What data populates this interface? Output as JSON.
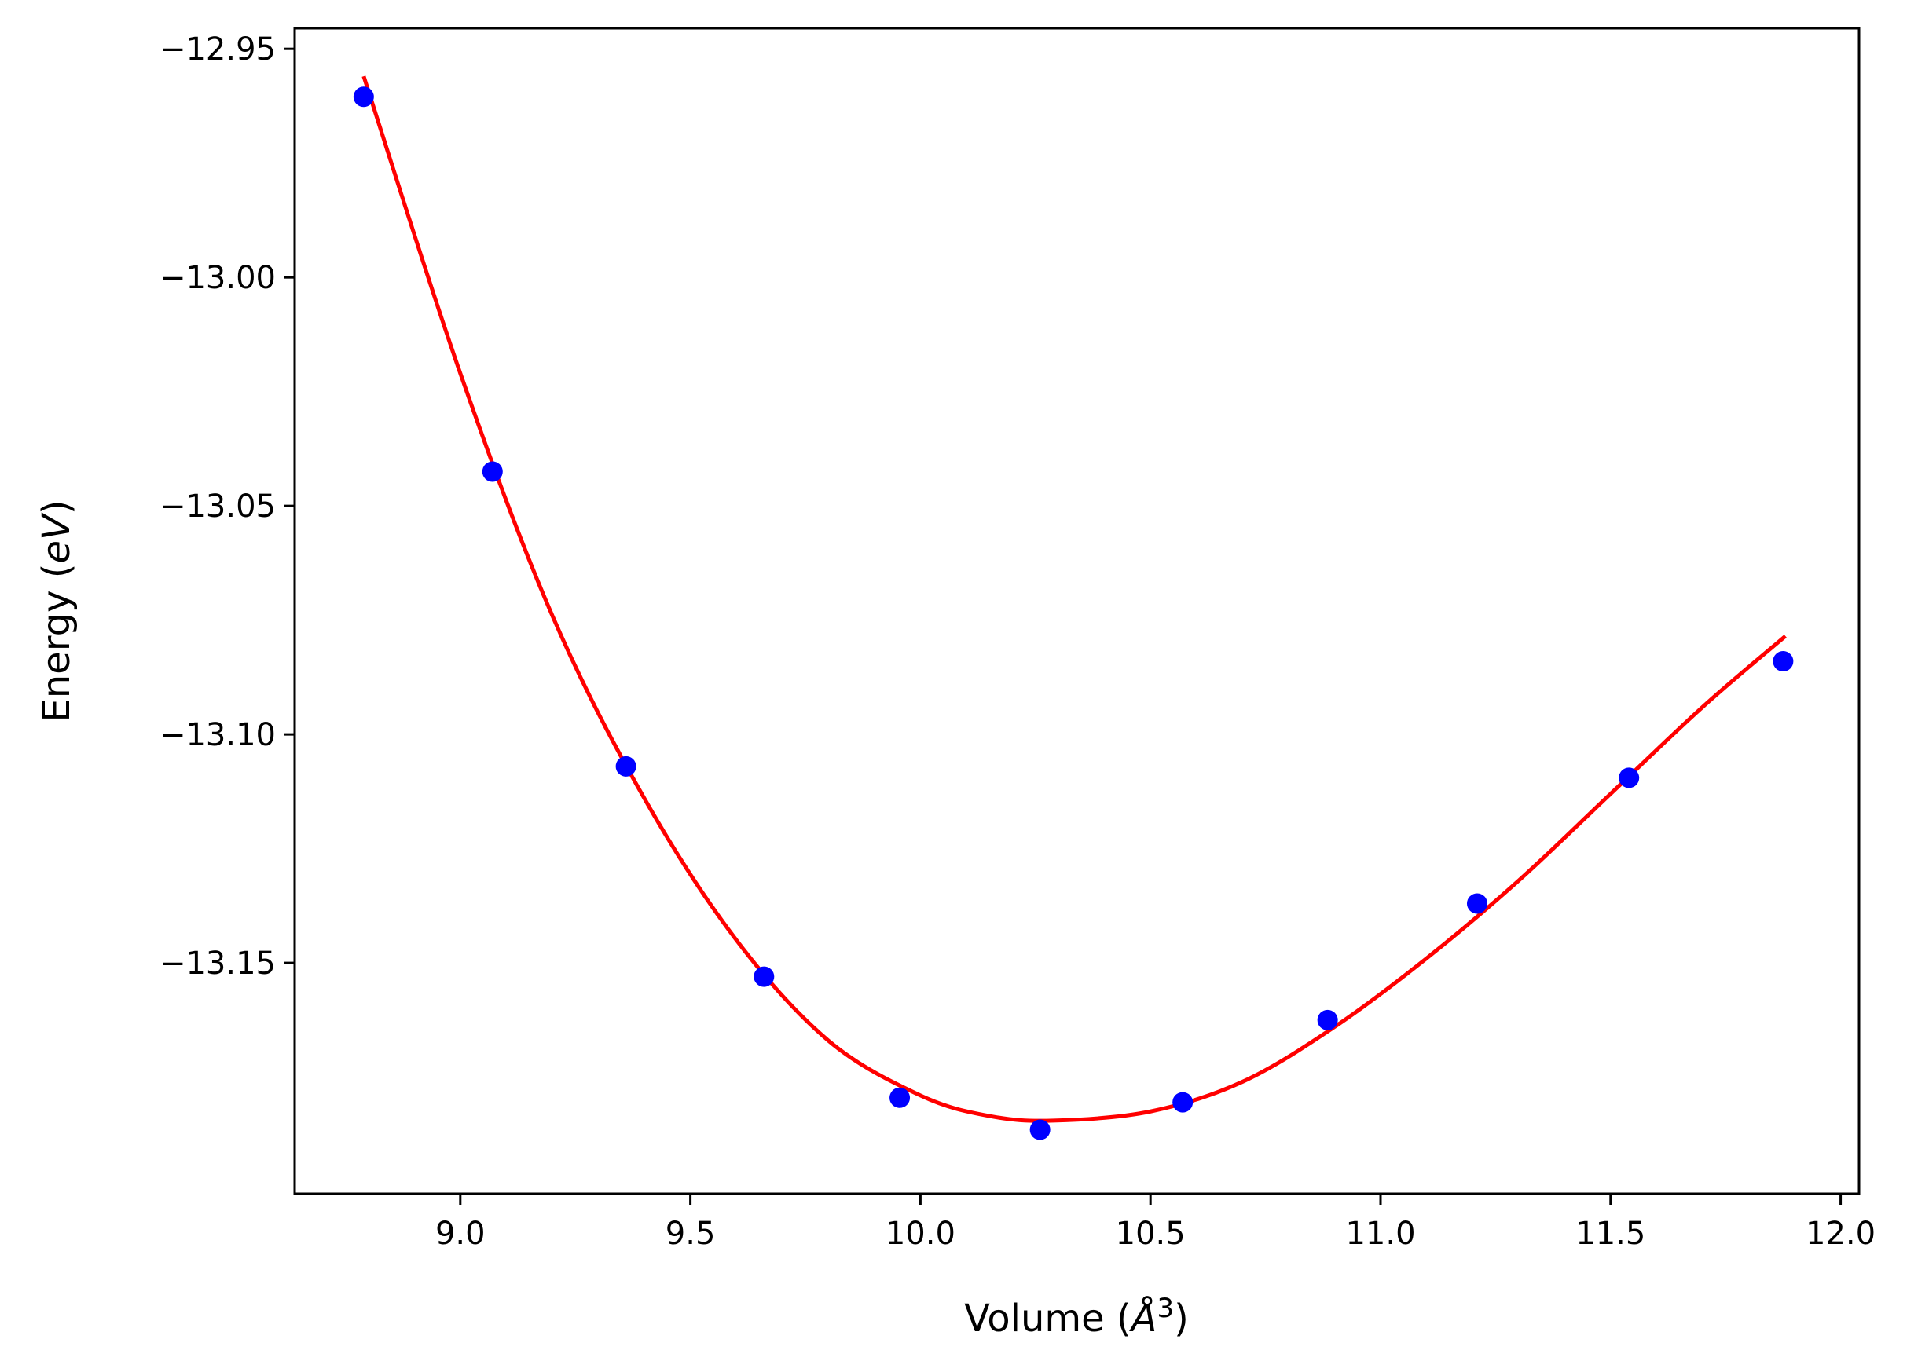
{
  "chart_data": {
    "type": "scatter",
    "xlabel_main": "Volume (",
    "xlabel_unit": "Å",
    "xlabel_sup": "3",
    "xlabel_end": ")",
    "ylabel_main": "Energy (",
    "ylabel_unit": "eV",
    "ylabel_end": ")",
    "xlim": [
      8.64,
      12.04
    ],
    "ylim": [
      -13.2005,
      -12.9455
    ],
    "x_ticks": [
      9.0,
      9.5,
      10.0,
      10.5,
      11.0,
      11.5,
      12.0
    ],
    "x_tick_labels": [
      "9.0",
      "9.5",
      "10.0",
      "10.5",
      "11.0",
      "11.5",
      "12.0"
    ],
    "y_ticks": [
      -12.95,
      -13.0,
      -13.05,
      -13.1,
      -13.15
    ],
    "y_tick_labels": [
      "−12.95",
      "−13.00",
      "−13.05",
      "−13.10",
      "−13.15"
    ],
    "grid": false,
    "series": [
      {
        "kind": "points",
        "color": "#0000ff",
        "points": [
          {
            "x": 8.79,
            "y": -12.9605
          },
          {
            "x": 9.07,
            "y": -13.0425
          },
          {
            "x": 9.36,
            "y": -13.107
          },
          {
            "x": 9.66,
            "y": -13.153
          },
          {
            "x": 9.955,
            "y": -13.1795
          },
          {
            "x": 10.26,
            "y": -13.1865
          },
          {
            "x": 10.57,
            "y": -13.1805
          },
          {
            "x": 10.885,
            "y": -13.1625
          },
          {
            "x": 11.21,
            "y": -13.137
          },
          {
            "x": 11.54,
            "y": -13.1095
          },
          {
            "x": 11.875,
            "y": -13.084
          }
        ]
      },
      {
        "kind": "fit-curve",
        "color": "#ff0000",
        "points": [
          {
            "x": 8.79,
            "y": -12.956
          },
          {
            "x": 9.0,
            "y": -13.021
          },
          {
            "x": 9.2,
            "y": -13.074
          },
          {
            "x": 9.4,
            "y": -13.114
          },
          {
            "x": 9.6,
            "y": -13.145
          },
          {
            "x": 9.8,
            "y": -13.167
          },
          {
            "x": 10.0,
            "y": -13.179
          },
          {
            "x": 10.15,
            "y": -13.1835
          },
          {
            "x": 10.29,
            "y": -13.1845
          },
          {
            "x": 10.5,
            "y": -13.1825
          },
          {
            "x": 10.7,
            "y": -13.176
          },
          {
            "x": 10.9,
            "y": -13.164
          },
          {
            "x": 11.1,
            "y": -13.149
          },
          {
            "x": 11.3,
            "y": -13.132
          },
          {
            "x": 11.5,
            "y": -13.113
          },
          {
            "x": 11.7,
            "y": -13.094
          },
          {
            "x": 11.88,
            "y": -13.0785
          }
        ]
      }
    ]
  }
}
